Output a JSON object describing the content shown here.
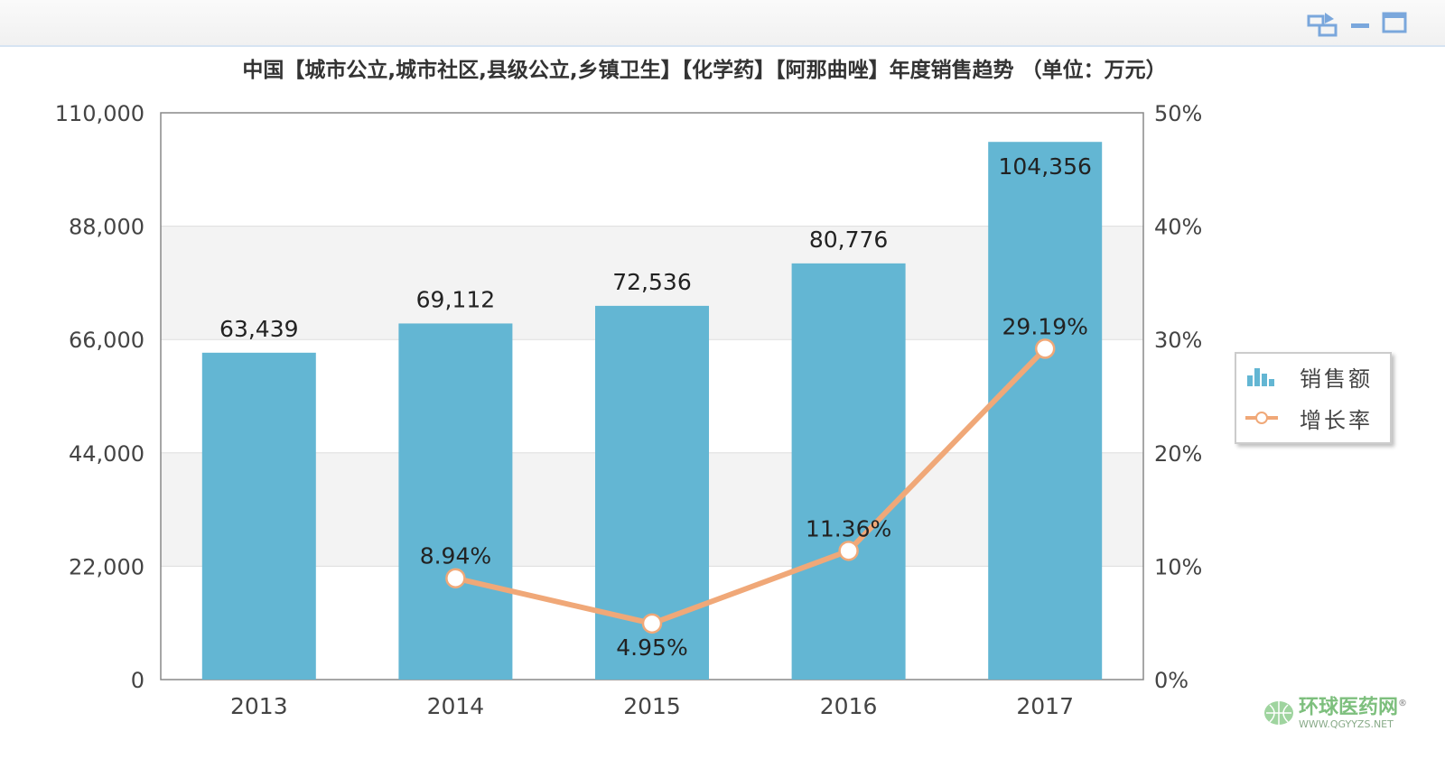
{
  "window": {
    "icons": [
      "switch-view-icon",
      "minimize-icon",
      "maximize-icon"
    ]
  },
  "watermark": {
    "name": "环球医药网",
    "url": "WWW.QGYYZS.NET",
    "mark": "®"
  },
  "chart_data": {
    "type": "bar+line",
    "title": "中国【城市公立,城市社区,县级公立,乡镇卫生】【化学药】【阿那曲唑】年度销售趋势 （单位：万元）",
    "categories": [
      "2013",
      "2014",
      "2015",
      "2016",
      "2017"
    ],
    "series": [
      {
        "name": "销售额",
        "type": "bar",
        "axis": "left",
        "values": [
          63439,
          69112,
          72536,
          80776,
          104356
        ],
        "labels": [
          "63,439",
          "69,112",
          "72,536",
          "80,776",
          "104,356"
        ],
        "color": "#63b6d3"
      },
      {
        "name": "增长率",
        "type": "line",
        "axis": "right",
        "values": [
          null,
          8.94,
          4.95,
          11.36,
          29.19
        ],
        "labels": [
          "",
          "8.94%",
          "4.95%",
          "11.36%",
          "29.19%"
        ],
        "color": "#f0a878"
      }
    ],
    "yleft": {
      "ylim": [
        0,
        110000
      ],
      "ticks": [
        "0",
        "22,000",
        "44,000",
        "66,000",
        "88,000",
        "110,000"
      ]
    },
    "yright": {
      "ylim": [
        0,
        50
      ],
      "ticks": [
        "0%",
        "10%",
        "20%",
        "30%",
        "40%",
        "50%"
      ]
    },
    "legend": "right",
    "grid": true
  }
}
